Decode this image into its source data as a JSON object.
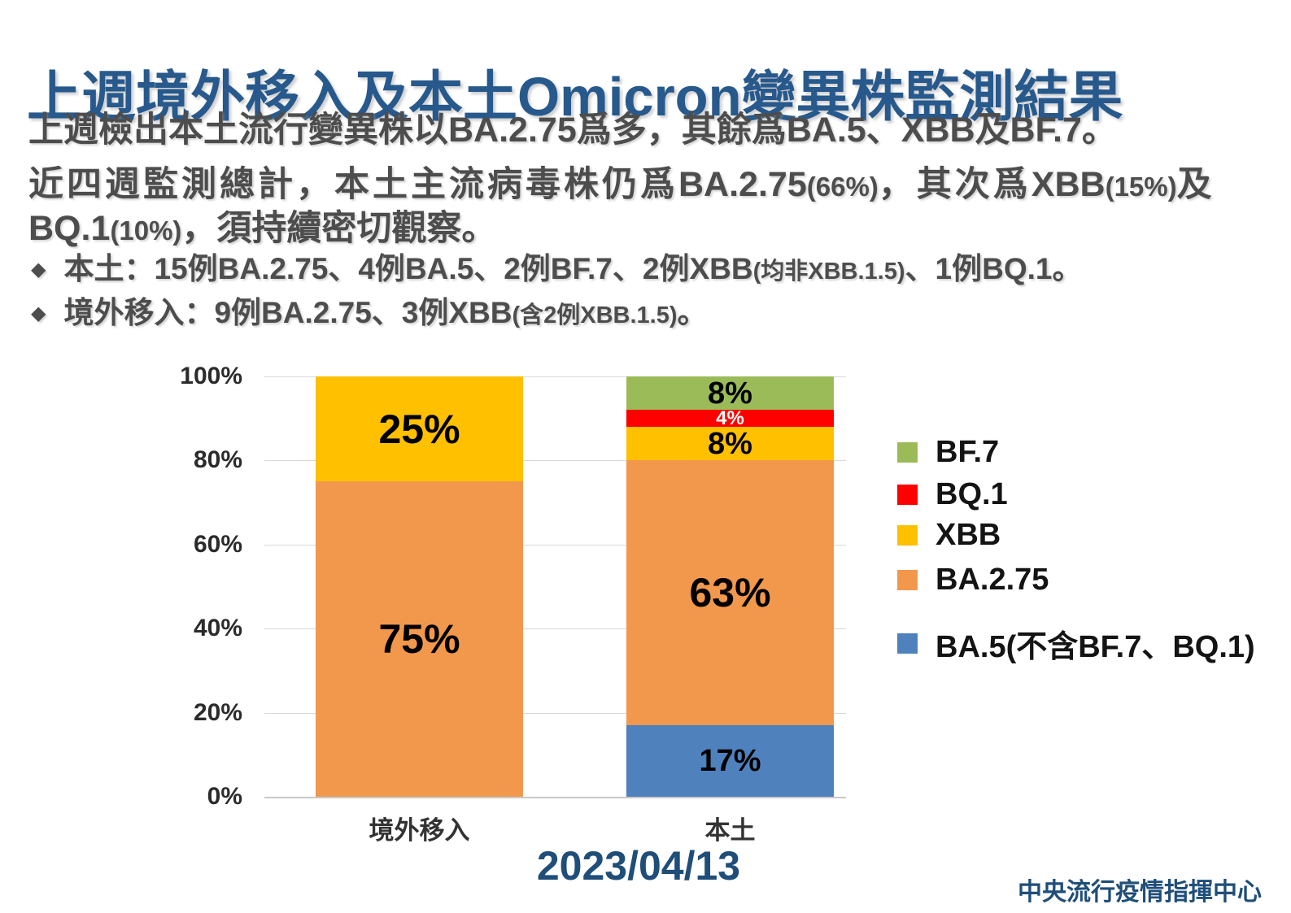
{
  "title": "上週境外移入及本土Omicron變異株監測結果",
  "intro": {
    "line1": "上週檢出本土流行變異株以BA.2.75爲多，其餘爲BA.5、XBB及BF.7。",
    "line2": {
      "seg1": "近四週監測總計，本土主流病毒株仍爲",
      "seg2": "BA.2.75",
      "seg3": "(66%)",
      "seg4": "，其次爲",
      "seg5": "XBB",
      "seg6": "(15%)",
      "seg7": "及"
    },
    "line3": {
      "seg1": "BQ.1",
      "seg2": "(10%)",
      "seg3": "，須持續密切觀察。"
    }
  },
  "bullets": [
    {
      "marker": "◆",
      "lead": "本土：15例BA.2.75、4例BA.5、2例BF.7、2例XBB",
      "small": "(均非XBB.1.5)",
      "tail": "、1例BQ.1。"
    },
    {
      "marker": "◆",
      "lead": "境外移入：9例BA.2.75、3例XBB",
      "small": "(含2例XBB.1.5)",
      "tail": "。"
    }
  ],
  "chart_data": {
    "type": "bar",
    "subtype": "100%-stacked-column",
    "title": "",
    "categories": [
      "境外移入",
      "本土"
    ],
    "series": [
      {
        "name": "BF.7",
        "color": "#9BBB59",
        "label_color": "#000000",
        "values": [
          0,
          8
        ]
      },
      {
        "name": "BQ.1",
        "color": "#FF0000",
        "label_color": "#FFFFFF",
        "values": [
          0,
          4
        ]
      },
      {
        "name": "XBB",
        "color": "#FFC000",
        "label_color": "#000000",
        "values": [
          25,
          8
        ]
      },
      {
        "name": "BA.2.75",
        "color": "#F2984C",
        "label_color": "#000000",
        "values": [
          75,
          63
        ]
      },
      {
        "name": "BA.5(不含BF.7、BQ.1)",
        "color": "#4F81BD",
        "label_color": "#000000",
        "values": [
          0,
          17
        ]
      }
    ],
    "data_labels": {
      "境外移入": [
        "25%",
        "75%"
      ],
      "本土": [
        "8%",
        "4%",
        "8%",
        "63%",
        "17%"
      ]
    },
    "y_ticks": [
      "100%",
      "80%",
      "60%",
      "40%",
      "20%",
      "0%"
    ],
    "ylim": [
      0,
      100
    ],
    "grid": true,
    "legend_position": "right"
  },
  "footer": {
    "date": "2023/04/13",
    "agency": "中央流行疫情指揮中心"
  },
  "colors": {
    "title_blue": "#27598C",
    "footer_blue": "#1F4E79",
    "body_gray": "#4D4D4D",
    "gridline": "#D9D9D9"
  }
}
